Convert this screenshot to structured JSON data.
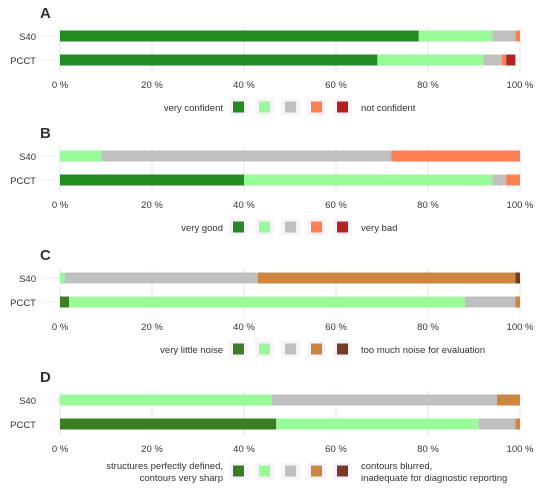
{
  "chart_data": [
    {
      "type": "bar",
      "stacked": true,
      "orientation": "horizontal",
      "panel_label": "A",
      "categories": [
        "S40",
        "PCCT"
      ],
      "series": [
        {
          "name": "very confident",
          "color": "#228b22",
          "values": [
            78,
            69
          ]
        },
        {
          "name": "",
          "color": "#98fb98",
          "values": [
            16,
            23
          ]
        },
        {
          "name": "",
          "color": "#c0c0c0",
          "values": [
            5,
            4
          ]
        },
        {
          "name": "",
          "color": "#ff7f50",
          "values": [
            1,
            1
          ]
        },
        {
          "name": "not confident",
          "color": "#b22222",
          "values": [
            0,
            2
          ]
        }
      ],
      "xticks": [
        "0 %",
        "20 %",
        "40 %",
        "60 %",
        "80 %",
        "100 %"
      ],
      "xlim": [
        0,
        100
      ],
      "legend": {
        "left_label": "very confident",
        "right_label": "not confident"
      }
    },
    {
      "type": "bar",
      "stacked": true,
      "orientation": "horizontal",
      "panel_label": "B",
      "categories": [
        "S40",
        "PCCT"
      ],
      "series": [
        {
          "name": "very good",
          "color": "#228b22",
          "values": [
            0,
            40
          ]
        },
        {
          "name": "",
          "color": "#98fb98",
          "values": [
            9,
            54
          ]
        },
        {
          "name": "",
          "color": "#c0c0c0",
          "values": [
            63,
            3
          ]
        },
        {
          "name": "",
          "color": "#ff7f50",
          "values": [
            28,
            3
          ]
        },
        {
          "name": "very bad",
          "color": "#b22222",
          "values": [
            0,
            0
          ]
        }
      ],
      "xticks": [
        "0 %",
        "20 %",
        "40 %",
        "60 %",
        "80 %",
        "100 %"
      ],
      "xlim": [
        0,
        100
      ],
      "legend": {
        "left_label": "very good",
        "right_label": "very bad"
      }
    },
    {
      "type": "bar",
      "stacked": true,
      "orientation": "horizontal",
      "panel_label": "C",
      "categories": [
        "S40",
        "PCCT"
      ],
      "series": [
        {
          "name": "very little noise",
          "color": "#3a7d22",
          "values": [
            0,
            2
          ]
        },
        {
          "name": "",
          "color": "#98fb98",
          "values": [
            1,
            86
          ]
        },
        {
          "name": "",
          "color": "#c0c0c0",
          "values": [
            42,
            11
          ]
        },
        {
          "name": "",
          "color": "#cd853f",
          "values": [
            56,
            1
          ]
        },
        {
          "name": "too much noise for evaluation",
          "color": "#7b3a24",
          "values": [
            1,
            0
          ]
        }
      ],
      "xticks": [
        "0 %",
        "20 %",
        "40 %",
        "60 %",
        "80 %",
        "100 %"
      ],
      "xlim": [
        0,
        100
      ],
      "legend": {
        "left_label": "very little noise",
        "right_label": "too much noise for evaluation"
      }
    },
    {
      "type": "bar",
      "stacked": true,
      "orientation": "horizontal",
      "panel_label": "D",
      "categories": [
        "S40",
        "PCCT"
      ],
      "series": [
        {
          "name": "structures perfectly defined, contours very sharp",
          "color": "#3a7d22",
          "values": [
            0,
            47
          ]
        },
        {
          "name": "",
          "color": "#98fb98",
          "values": [
            46,
            44
          ]
        },
        {
          "name": "",
          "color": "#c0c0c0",
          "values": [
            49,
            8
          ]
        },
        {
          "name": "",
          "color": "#cd853f",
          "values": [
            5,
            1
          ]
        },
        {
          "name": "contours blurred, inadequate for diagnostic reporting",
          "color": "#7b3a24",
          "values": [
            0,
            0
          ]
        }
      ],
      "xticks": [
        "0 %",
        "20 %",
        "40 %",
        "60 %",
        "80 %",
        "100 %"
      ],
      "xlim": [
        0,
        100
      ],
      "legend": {
        "left_label": [
          "structures perfectly defined,",
          "contours very sharp"
        ],
        "right_label": [
          "contours blurred,",
          "inadequate for diagnostic reporting"
        ]
      }
    }
  ]
}
